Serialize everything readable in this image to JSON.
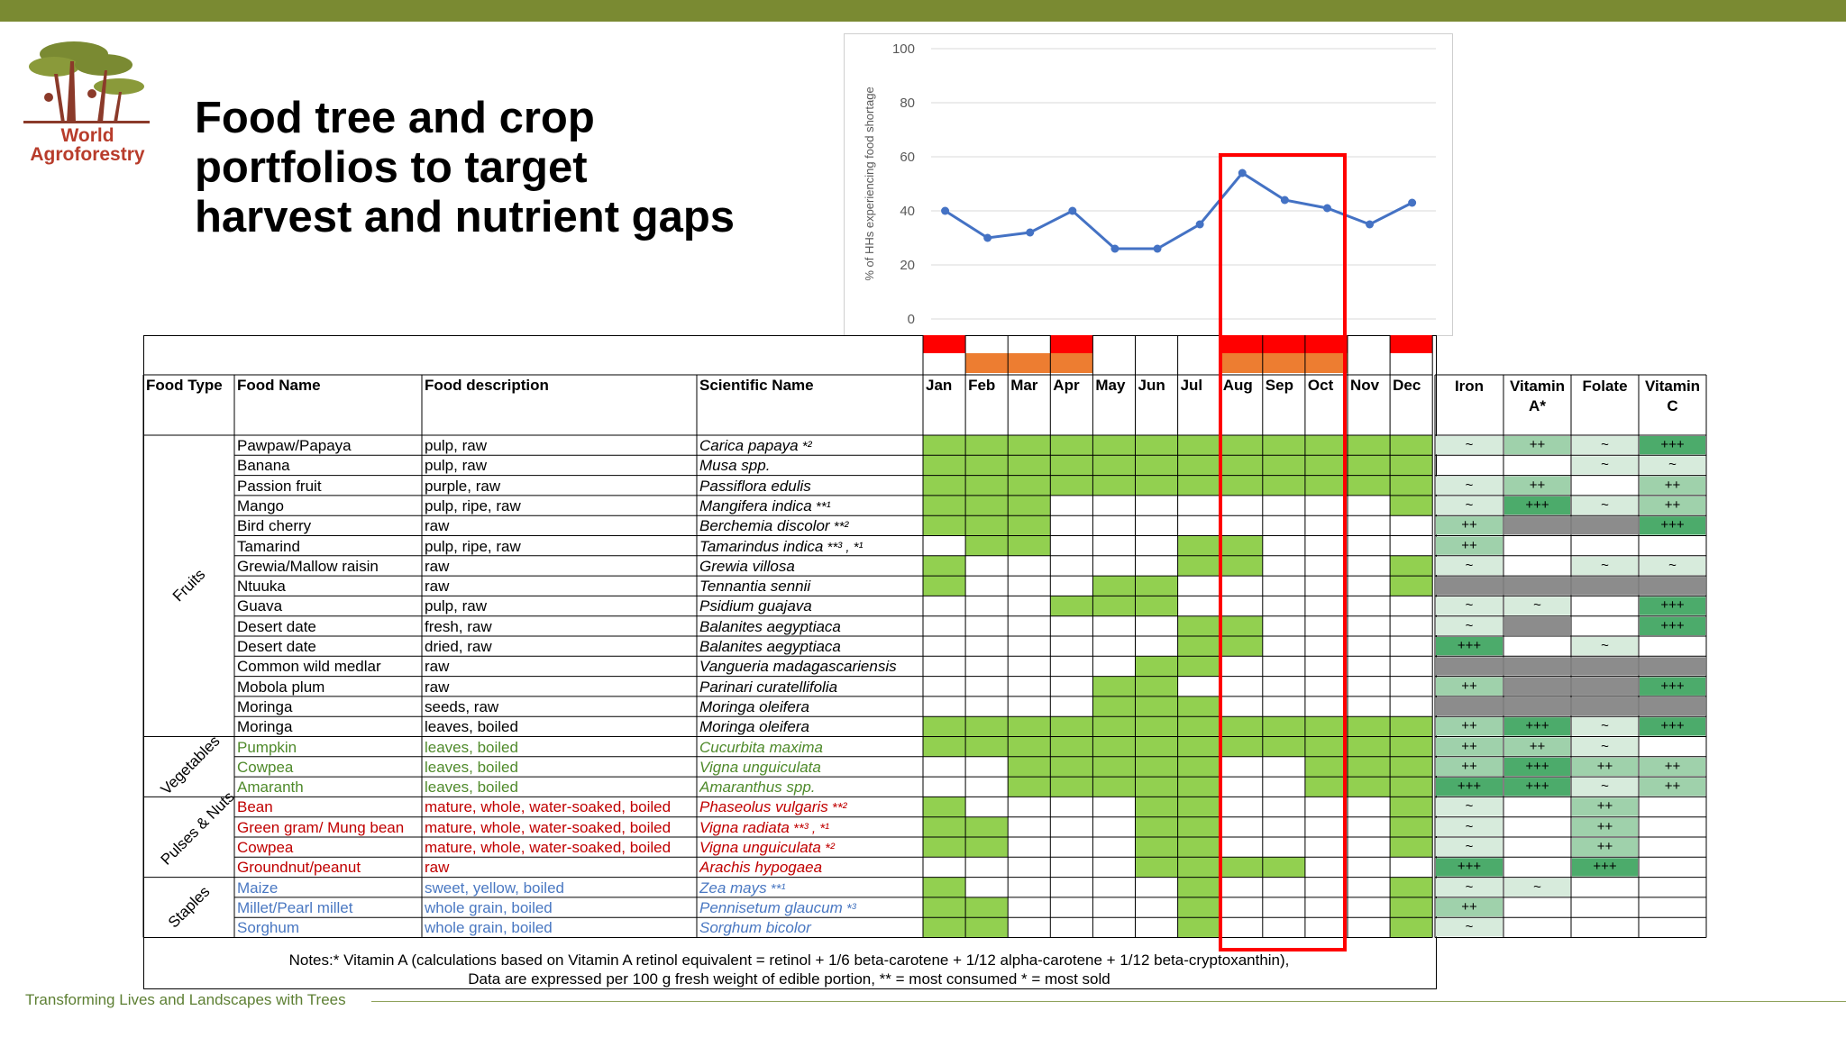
{
  "title_lines": [
    "Food tree and crop",
    "portfolios to target",
    "harvest and nutrient gaps"
  ],
  "logo": {
    "line1": "World",
    "line2": "Agroforestry"
  },
  "footer": "Transforming Lives and Landscapes with Trees",
  "chart_data": {
    "type": "line",
    "title": "",
    "ylabel": "% of HHs experiencing food shortage",
    "xlabel": "",
    "ylim": [
      0,
      100
    ],
    "yticks": [
      0,
      20,
      40,
      60,
      80,
      100
    ],
    "categories": [
      "Jan",
      "Feb",
      "Mar",
      "Apr",
      "May",
      "Jun",
      "Jul",
      "Aug",
      "Sep",
      "Oct",
      "Nov",
      "Dec"
    ],
    "values": [
      40,
      30,
      32,
      40,
      26,
      26,
      35,
      54,
      44,
      41,
      35,
      43
    ],
    "series_color": "#4472c4",
    "grid": true
  },
  "colors": {
    "harvest": "#92d050",
    "shortage_red": "#ff0000",
    "shortage_orange": "#ed7d31",
    "highlight": "#ff0000",
    "fruit_text": "#000000",
    "veg_text": "#4f8a2b",
    "pulse_text": "#c00000",
    "staple_text": "#4a78c2",
    "nut_low": "#d7ebdc",
    "nut_mid": "#9fd1ab",
    "nut_high": "#4cab6b",
    "nut_na": "#8c8c8c"
  },
  "headers": {
    "food_type": "Food Type",
    "food_name": "Food Name",
    "description": "Food description",
    "scientific": "Scientific Name",
    "months": [
      "Jan",
      "Feb",
      "Mar",
      "Apr",
      "May",
      "Jun",
      "Jul",
      "Aug",
      "Sep",
      "Oct",
      "Nov",
      "Dec"
    ],
    "nutrients": [
      "Iron",
      "Vitamin A*",
      "Folate",
      "Vitamin C"
    ]
  },
  "shortage_bars": {
    "red": [
      0,
      3,
      7,
      8,
      9,
      11
    ],
    "orange": [
      1,
      2,
      3,
      7,
      8,
      9
    ]
  },
  "groups": [
    {
      "name": "Fruits",
      "color": "fruit_text",
      "start": 0,
      "end": 14
    },
    {
      "name": "Vegetables",
      "color": "fruit_text",
      "start": 15,
      "end": 17
    },
    {
      "name": "Pulses & Nuts",
      "color": "fruit_text",
      "start": 18,
      "end": 21
    },
    {
      "name": "Staples",
      "color": "fruit_text",
      "start": 22,
      "end": 24
    }
  ],
  "rows": [
    {
      "name": "Pawpaw/Papaya",
      "desc": "pulp, raw",
      "sci": "Carica papaya",
      "mark": " *²",
      "cls": "fruit_text",
      "months": [
        1,
        1,
        1,
        1,
        1,
        1,
        1,
        1,
        1,
        1,
        1,
        1
      ],
      "nut": [
        "~",
        "++",
        "~",
        "+++"
      ]
    },
    {
      "name": "Banana",
      "desc": "pulp, raw",
      "sci": "Musa spp.",
      "mark": "",
      "cls": "fruit_text",
      "months": [
        1,
        1,
        1,
        1,
        1,
        1,
        1,
        1,
        1,
        1,
        1,
        1
      ],
      "nut": [
        "",
        "",
        "~",
        "~"
      ]
    },
    {
      "name": "Passion fruit",
      "desc": "purple, raw",
      "sci": "Passiflora edulis",
      "mark": "",
      "cls": "fruit_text",
      "months": [
        1,
        1,
        1,
        1,
        1,
        1,
        1,
        1,
        1,
        1,
        1,
        1
      ],
      "nut": [
        "~",
        "++",
        "",
        "++"
      ]
    },
    {
      "name": "Mango",
      "desc": "pulp, ripe, raw",
      "sci": "Mangifera indica",
      "mark": " **¹",
      "cls": "fruit_text",
      "months": [
        1,
        1,
        1,
        0,
        0,
        0,
        0,
        0,
        0,
        0,
        0,
        1
      ],
      "nut": [
        "~",
        "+++",
        "~",
        "++"
      ]
    },
    {
      "name": "Bird cherry",
      "desc": "raw",
      "sci": "Berchemia discolor",
      "mark": " **²",
      "cls": "fruit_text",
      "months": [
        1,
        1,
        1,
        0,
        0,
        0,
        0,
        0,
        0,
        0,
        0,
        0
      ],
      "nut": [
        "++",
        "NA",
        "NA",
        "+++"
      ]
    },
    {
      "name": "Tamarind",
      "desc": "pulp, ripe, raw",
      "sci": "Tamarindus indica",
      "mark": " **³ , *¹",
      "cls": "fruit_text",
      "months": [
        0,
        1,
        1,
        0,
        0,
        0,
        1,
        1,
        0,
        0,
        0,
        0
      ],
      "nut": [
        "++",
        "",
        "",
        ""
      ]
    },
    {
      "name": "Grewia/Mallow raisin",
      "desc": "raw",
      "sci": "Grewia villosa",
      "mark": "",
      "cls": "fruit_text",
      "months": [
        1,
        0,
        0,
        0,
        0,
        0,
        1,
        1,
        0,
        0,
        0,
        1
      ],
      "nut": [
        "~",
        "",
        "~",
        "~"
      ]
    },
    {
      "name": "Ntuuka",
      "desc": "raw",
      "sci": "Tennantia sennii",
      "mark": "",
      "cls": "fruit_text",
      "months": [
        1,
        0,
        0,
        0,
        1,
        1,
        0,
        0,
        0,
        0,
        0,
        1
      ],
      "nut": [
        "NA",
        "NA",
        "NA",
        "NA"
      ]
    },
    {
      "name": "Guava",
      "desc": "pulp, raw",
      "sci": "Psidium guajava",
      "mark": "",
      "cls": "fruit_text",
      "months": [
        0,
        0,
        0,
        1,
        1,
        1,
        0,
        0,
        0,
        0,
        0,
        0
      ],
      "nut": [
        "~",
        "~",
        "",
        "+++"
      ]
    },
    {
      "name": "Desert date",
      "desc": "fresh, raw",
      "sci": "Balanites aegyptiaca",
      "mark": "",
      "cls": "fruit_text",
      "months": [
        0,
        0,
        0,
        0,
        0,
        0,
        1,
        1,
        0,
        0,
        0,
        0
      ],
      "nut": [
        "~",
        "NA",
        "",
        "+++"
      ]
    },
    {
      "name": "Desert date",
      "desc": "dried, raw",
      "sci": "Balanites aegyptiaca",
      "mark": "",
      "cls": "fruit_text",
      "months": [
        0,
        0,
        0,
        0,
        0,
        0,
        1,
        1,
        0,
        0,
        0,
        0
      ],
      "nut": [
        "+++",
        "",
        "~",
        ""
      ]
    },
    {
      "name": "Common wild medlar",
      "desc": "raw",
      "sci": "Vangueria madagascariensis",
      "mark": "",
      "cls": "fruit_text",
      "months": [
        0,
        0,
        0,
        0,
        0,
        1,
        1,
        0,
        0,
        0,
        0,
        0
      ],
      "nut": [
        "NA",
        "NA",
        "NA",
        "NA"
      ]
    },
    {
      "name": "Mobola plum",
      "desc": "raw",
      "sci": "Parinari curatellifolia",
      "mark": "",
      "cls": "fruit_text",
      "months": [
        0,
        0,
        0,
        0,
        1,
        1,
        0,
        0,
        0,
        0,
        0,
        0
      ],
      "nut": [
        "++",
        "NA",
        "NA",
        "+++"
      ]
    },
    {
      "name": "Moringa",
      "desc": "seeds, raw",
      "sci": "Moringa oleifera",
      "mark": "",
      "cls": "fruit_text",
      "months": [
        0,
        0,
        0,
        0,
        1,
        1,
        1,
        0,
        0,
        0,
        0,
        0
      ],
      "nut": [
        "NA",
        "NA",
        "NA",
        "NA"
      ]
    },
    {
      "name": "Moringa",
      "desc": "leaves, boiled",
      "sci": "Moringa oleifera",
      "mark": "",
      "cls": "fruit_text",
      "months": [
        1,
        1,
        1,
        1,
        1,
        1,
        1,
        1,
        1,
        1,
        1,
        1
      ],
      "nut": [
        "++",
        "+++",
        "~",
        "+++"
      ]
    },
    {
      "name": "Pumpkin",
      "desc": "leaves, boiled",
      "sci": "Cucurbita maxima",
      "mark": "",
      "cls": "veg_text",
      "months": [
        1,
        1,
        1,
        1,
        1,
        1,
        1,
        1,
        1,
        1,
        1,
        1
      ],
      "nut": [
        "++",
        "++",
        "~",
        ""
      ]
    },
    {
      "name": "Cowpea",
      "desc": "leaves, boiled",
      "sci": "Vigna unguiculata",
      "mark": "",
      "cls": "veg_text",
      "months": [
        0,
        0,
        1,
        1,
        1,
        1,
        1,
        0,
        0,
        1,
        1,
        1
      ],
      "nut": [
        "++",
        "+++",
        "++",
        "++"
      ]
    },
    {
      "name": "Amaranth",
      "desc": "leaves, boiled",
      "sci": "Amaranthus spp.",
      "mark": "",
      "cls": "veg_text",
      "months": [
        0,
        0,
        1,
        1,
        1,
        1,
        1,
        0,
        0,
        1,
        1,
        1
      ],
      "nut": [
        "+++",
        "+++",
        "~",
        "++"
      ]
    },
    {
      "name": "Bean",
      "desc": "mature, whole, water-soaked, boiled",
      "sci": "Phaseolus vulgaris",
      "mark": " **²",
      "cls": "pulse_text",
      "months": [
        1,
        0,
        0,
        0,
        0,
        1,
        1,
        0,
        0,
        0,
        0,
        1
      ],
      "nut": [
        "~",
        "",
        "++",
        ""
      ]
    },
    {
      "name": "Green gram/ Mung bean",
      "desc": "mature, whole, water-soaked, boiled",
      "sci": "Vigna radiata",
      "mark": " **³ , *¹",
      "cls": "pulse_text",
      "months": [
        1,
        1,
        0,
        0,
        0,
        1,
        1,
        0,
        0,
        0,
        0,
        1
      ],
      "nut": [
        "~",
        "",
        "++",
        ""
      ]
    },
    {
      "name": "Cowpea",
      "desc": "mature, whole, water-soaked, boiled",
      "sci": "Vigna unguiculata",
      "mark": " *²",
      "cls": "pulse_text",
      "months": [
        1,
        1,
        0,
        0,
        0,
        1,
        1,
        0,
        0,
        0,
        0,
        1
      ],
      "nut": [
        "~",
        "",
        "++",
        ""
      ]
    },
    {
      "name": "Groundnut/peanut",
      "desc": "raw",
      "sci": "Arachis hypogaea",
      "mark": "",
      "cls": "pulse_text",
      "months": [
        0,
        0,
        0,
        0,
        0,
        1,
        1,
        1,
        1,
        0,
        0,
        0
      ],
      "nut": [
        "+++",
        "",
        "+++",
        ""
      ]
    },
    {
      "name": "Maize",
      "desc": "sweet, yellow, boiled",
      "sci": "Zea mays",
      "mark": " **¹",
      "cls": "staple_text",
      "months": [
        1,
        0,
        0,
        0,
        0,
        0,
        1,
        0,
        0,
        0,
        0,
        1
      ],
      "nut": [
        "~",
        "~",
        "",
        ""
      ]
    },
    {
      "name": "Millet/Pearl millet",
      "desc": "whole grain, boiled",
      "sci": "Pennisetum glaucum",
      "mark": " *³",
      "cls": "staple_text",
      "months": [
        1,
        1,
        0,
        0,
        0,
        0,
        1,
        0,
        0,
        0,
        0,
        1
      ],
      "nut": [
        "++",
        "",
        "",
        ""
      ]
    },
    {
      "name": "Sorghum",
      "desc": "whole grain, boiled",
      "sci": "Sorghum bicolor",
      "mark": "",
      "cls": "staple_text",
      "months": [
        1,
        1,
        0,
        0,
        0,
        0,
        1,
        0,
        0,
        0,
        0,
        1
      ],
      "nut": [
        "~",
        "",
        "",
        ""
      ]
    }
  ],
  "notes": [
    "Notes:* Vitamin A (calculations based on Vitamin A retinol equivalent = retinol + 1/6 beta-carotene + 1/12 alpha-carotene + 1/12 beta-cryptoxanthin),",
    "Data are expressed per 100 g fresh weight of edible portion, ** = most consumed * = most sold"
  ]
}
